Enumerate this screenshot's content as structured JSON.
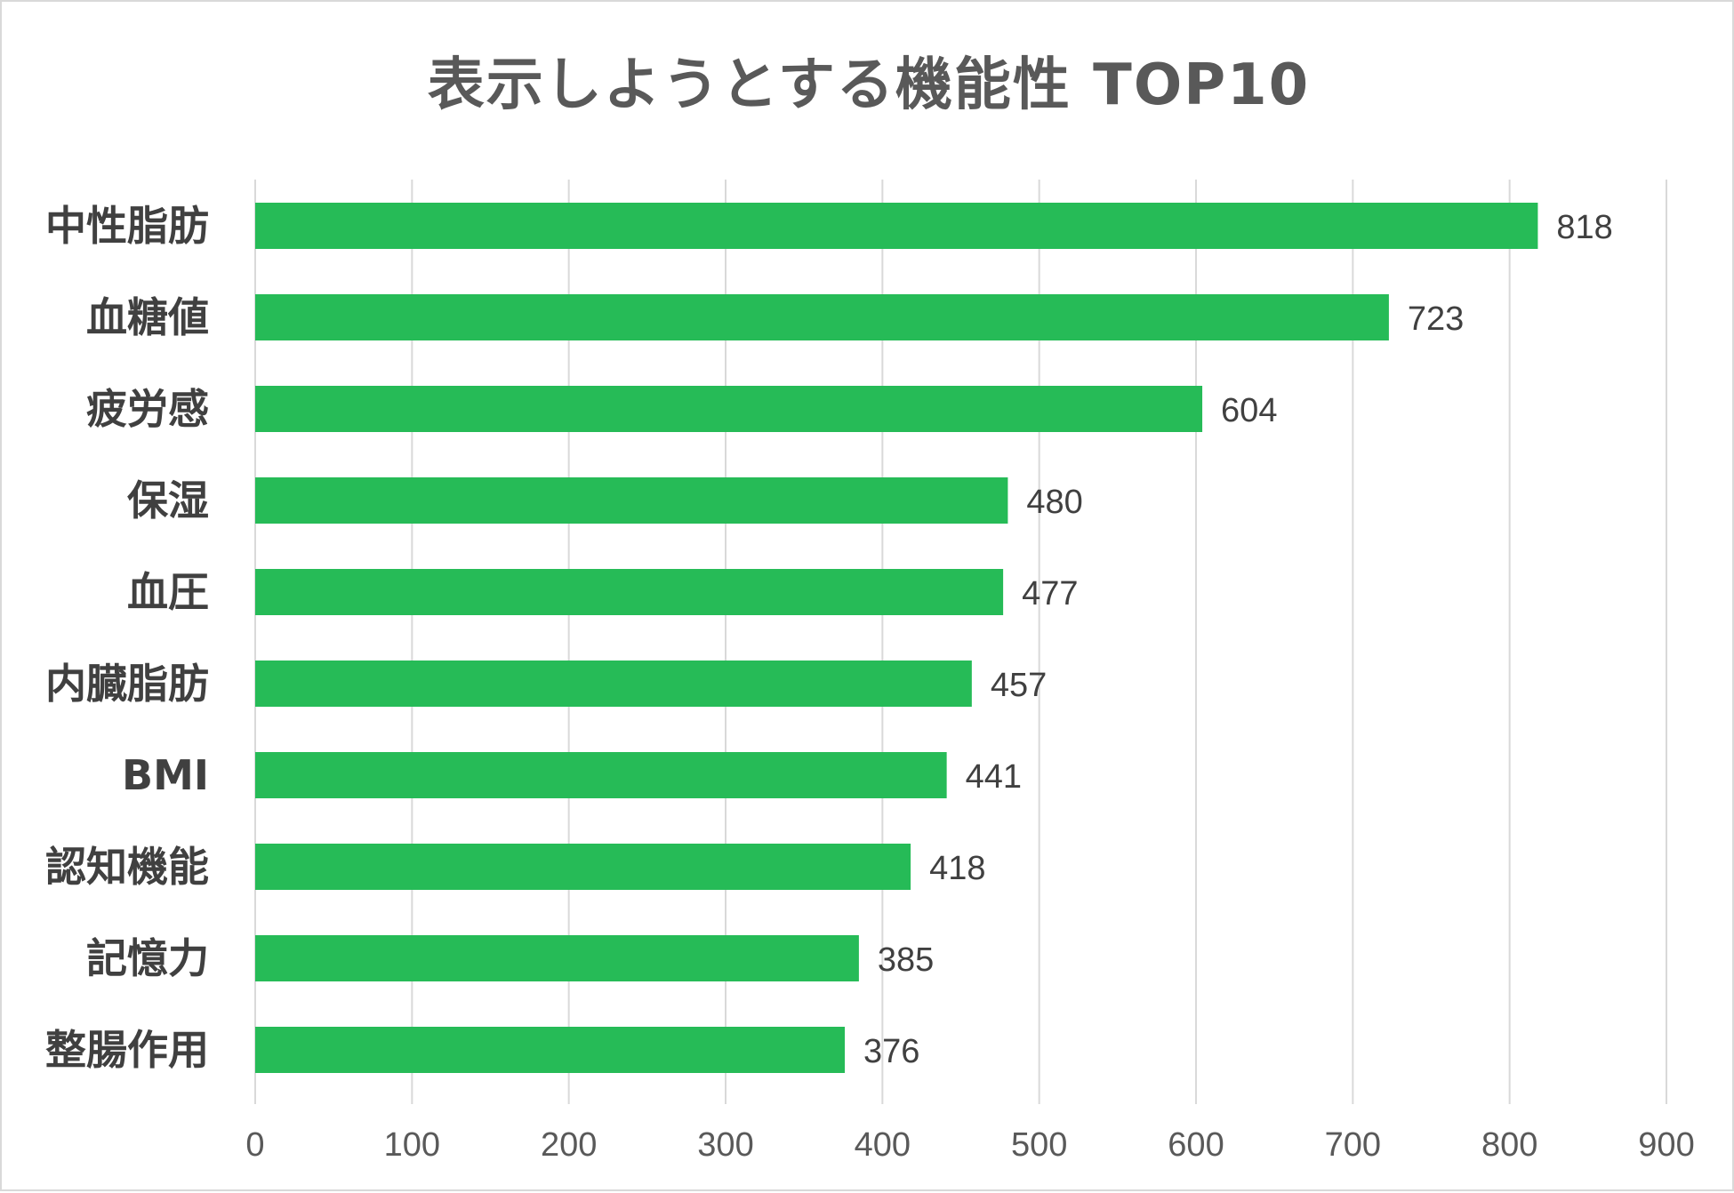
{
  "chart_data": {
    "type": "bar",
    "orientation": "horizontal",
    "title": "表示しようとする機能性 TOP10",
    "categories": [
      "中性脂肪",
      "血糖値",
      "疲労感",
      "保湿",
      "血圧",
      "内臓脂肪",
      "BMI",
      "認知機能",
      "記憶力",
      "整腸作用"
    ],
    "values": [
      818,
      723,
      604,
      480,
      477,
      457,
      441,
      418,
      385,
      376
    ],
    "xlim": [
      0,
      900
    ],
    "xticks": [
      0,
      100,
      200,
      300,
      400,
      500,
      600,
      700,
      800,
      900
    ],
    "grid": "vertical",
    "data_labels": true,
    "legend": "none",
    "colors": {
      "bar": "#26bb57",
      "grid": "#d9d9d9",
      "text": "#404040"
    }
  }
}
